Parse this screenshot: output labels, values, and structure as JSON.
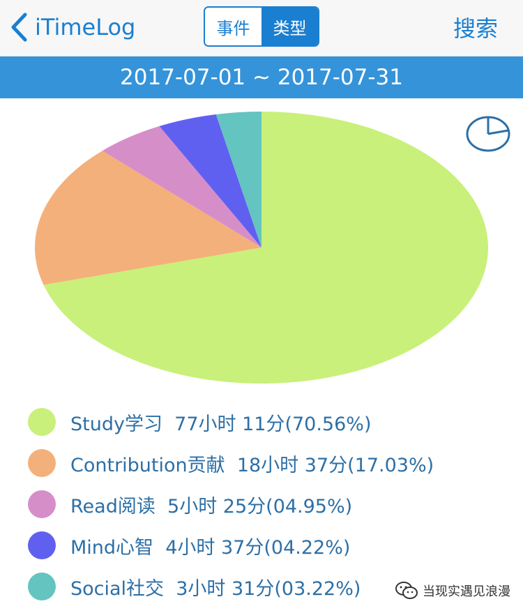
{
  "header": {
    "back_label": "iTimeLog",
    "tabs": [
      {
        "label": "事件",
        "active": false
      },
      {
        "label": "类型",
        "active": true
      }
    ],
    "search_label": "搜索"
  },
  "date_range": "2017-07-01 ~ 2017-07-31",
  "chart_data": {
    "type": "pie",
    "title": "",
    "slices": [
      {
        "name": "Study学习",
        "duration": "77小时 11分",
        "percent_label": "70.56%",
        "value": 70.56,
        "color": "#c9f07a"
      },
      {
        "name": "Contribution贡献",
        "duration": "18小时 37分",
        "percent_label": "17.03%",
        "value": 17.03,
        "color": "#f4b07a"
      },
      {
        "name": "Read阅读",
        "duration": "5小时 25分",
        "percent_label": "04.95%",
        "value": 4.95,
        "color": "#d68ec9"
      },
      {
        "name": "Mind心智",
        "duration": "4小时 37分",
        "percent_label": "04.22%",
        "value": 4.22,
        "color": "#6060f0"
      },
      {
        "name": "Social社交",
        "duration": "3小时 31分",
        "percent_label": "03.22%",
        "value": 3.22,
        "color": "#64c4c0"
      }
    ],
    "legend_position": "bottom"
  },
  "watermark": "当现实遇见浪漫",
  "colors": {
    "accent": "#1a7fd0",
    "date_bar": "#3593da",
    "legend_text": "#2c6fa6"
  }
}
